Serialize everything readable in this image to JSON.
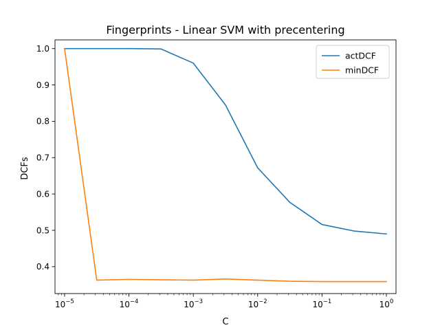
{
  "chart_data": {
    "type": "line",
    "title": "Fingerprints - Linear SVM with precentering",
    "xlabel": "C",
    "ylabel": "DCFs",
    "x_scale": "log",
    "xlim": [
      7.1e-06,
      1.41
    ],
    "ylim": [
      0.326,
      1.024
    ],
    "x_ticks": [
      {
        "value": 1e-05,
        "base": "10",
        "exp": "−5"
      },
      {
        "value": 0.0001,
        "base": "10",
        "exp": "−4"
      },
      {
        "value": 0.001,
        "base": "10",
        "exp": "−3"
      },
      {
        "value": 0.01,
        "base": "10",
        "exp": "−2"
      },
      {
        "value": 0.1,
        "base": "10",
        "exp": "−1"
      },
      {
        "value": 1,
        "base": "10",
        "exp": "0"
      }
    ],
    "y_ticks": [
      0.4,
      0.5,
      0.6,
      0.7,
      0.8,
      0.9,
      1.0
    ],
    "y_tick_labels": [
      "0.4",
      "0.5",
      "0.6",
      "0.7",
      "0.8",
      "0.9",
      "1.0"
    ],
    "x": [
      1e-05,
      3.16e-05,
      0.0001,
      0.000316,
      0.001,
      0.00316,
      0.01,
      0.0316,
      0.1,
      0.316,
      1
    ],
    "series": [
      {
        "name": "actDCF",
        "color": "#1f77b4",
        "values": [
          1.0,
          1.0,
          1.0,
          0.999,
          0.96,
          0.845,
          0.672,
          0.577,
          0.516,
          0.498,
          0.49
        ]
      },
      {
        "name": "minDCF",
        "color": "#ff7f0e",
        "values": [
          1.0,
          0.363,
          0.365,
          0.364,
          0.363,
          0.366,
          0.363,
          0.36,
          0.359,
          0.359,
          0.359
        ]
      }
    ],
    "grid": false,
    "legend_position": "top-right"
  }
}
